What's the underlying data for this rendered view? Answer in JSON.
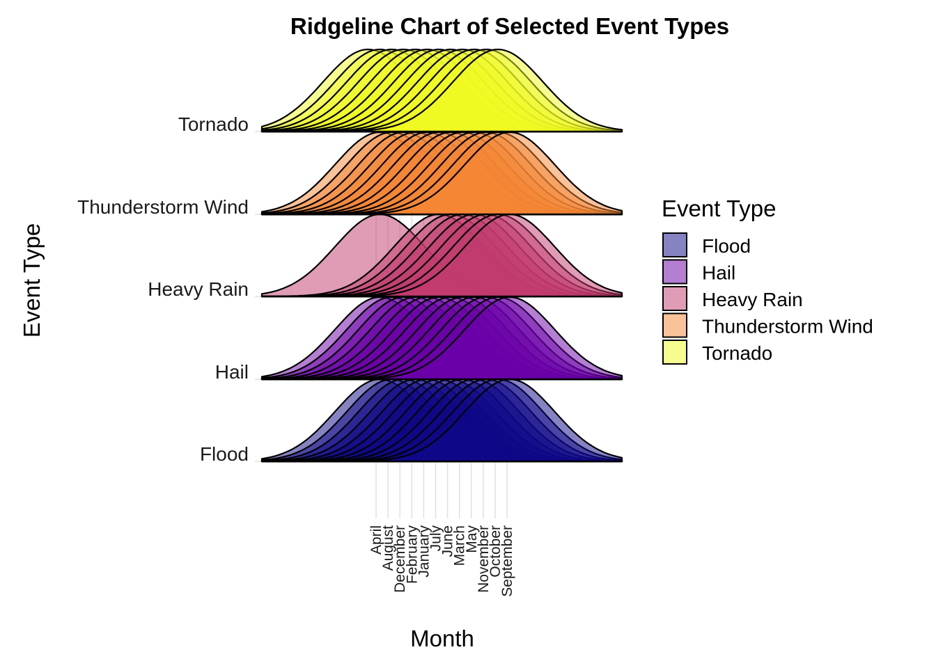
{
  "chart_data": {
    "type": "ridgeline",
    "title": "Ridgeline Chart of Selected Event Types",
    "xlabel": "Month",
    "ylabel": "Event Type",
    "x_tick_labels": [
      "April",
      "August",
      "December",
      "February",
      "January",
      "July",
      "June",
      "March",
      "May",
      "November",
      "October",
      "September"
    ],
    "x_tick_positions": [
      1,
      2,
      3,
      4,
      5,
      6,
      7,
      8,
      9,
      10,
      11,
      12
    ],
    "xlim": [
      -9,
      21.5
    ],
    "grid": true,
    "legend_placement": "right",
    "legend_title": "Event Type",
    "categories": [
      "Flood",
      "Hail",
      "Heavy Rain",
      "Thunderstorm Wind",
      "Tornado"
    ],
    "series": [
      {
        "name": "Flood",
        "color": "#0d0887",
        "means": [
          1,
          2,
          3,
          4,
          5,
          6,
          7,
          8,
          9,
          10,
          11,
          12
        ],
        "sd": 3.8
      },
      {
        "name": "Hail",
        "color": "#6a00a8",
        "means": [
          1,
          2,
          3,
          4,
          5,
          6,
          7,
          8,
          9,
          10,
          11,
          12
        ],
        "sd": 3.8
      },
      {
        "name": "Heavy Rain",
        "color": "#c13a6d",
        "means": [
          1,
          6,
          7,
          8,
          9,
          10,
          11,
          12
        ],
        "sd": 3.8
      },
      {
        "name": "Thunderstorm Wind",
        "color": "#f48533",
        "means": [
          1,
          2,
          3,
          4,
          5,
          6,
          7,
          8,
          9,
          10,
          11,
          12
        ],
        "sd": 3.8
      },
      {
        "name": "Tornado",
        "color": "#f0f921",
        "means": [
          0,
          1,
          2,
          3,
          4,
          5,
          6,
          7,
          8,
          9,
          10,
          11
        ],
        "sd": 3.8
      }
    ],
    "fill_opacity": 0.5
  }
}
